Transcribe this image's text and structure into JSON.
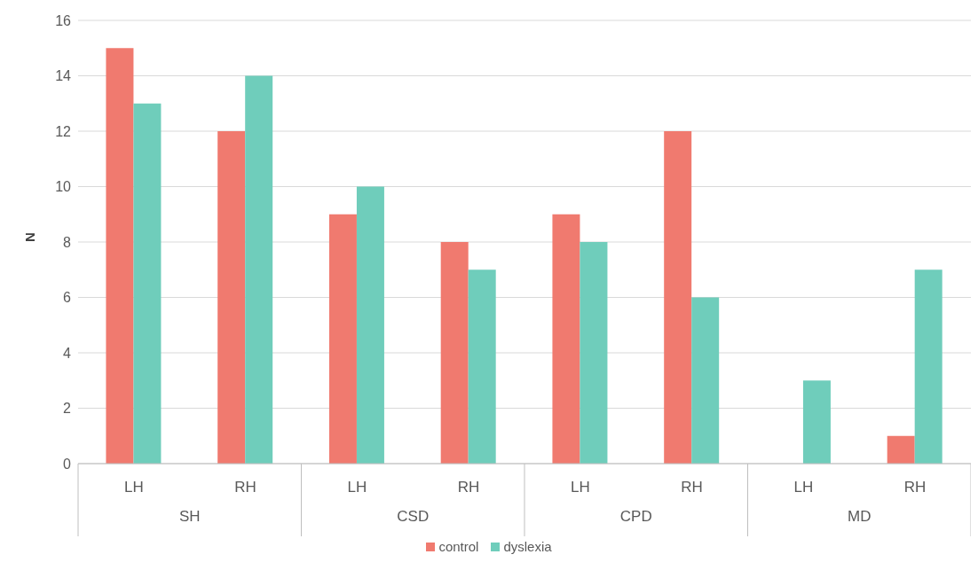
{
  "chart_data": {
    "type": "bar",
    "ylabel": "N",
    "categories": [
      "LH",
      "RH",
      "LH",
      "RH",
      "LH",
      "RH",
      "LH",
      "RH"
    ],
    "annotations": [
      "SH",
      "CSD",
      "CPD",
      "MD"
    ],
    "series": [
      {
        "name": "control",
        "color": "#f07a6f",
        "values": [
          15,
          12,
          9,
          8,
          9,
          12,
          0,
          1
        ]
      },
      {
        "name": "dyslexia",
        "color": "#6fcdbb",
        "values": [
          13,
          14,
          10,
          7,
          8,
          6,
          3,
          7
        ]
      }
    ],
    "ylim": [
      0,
      16
    ],
    "yticks": [
      0,
      2,
      4,
      6,
      8,
      10,
      12,
      14,
      16
    ],
    "grid": "y",
    "legend": "bottom"
  }
}
